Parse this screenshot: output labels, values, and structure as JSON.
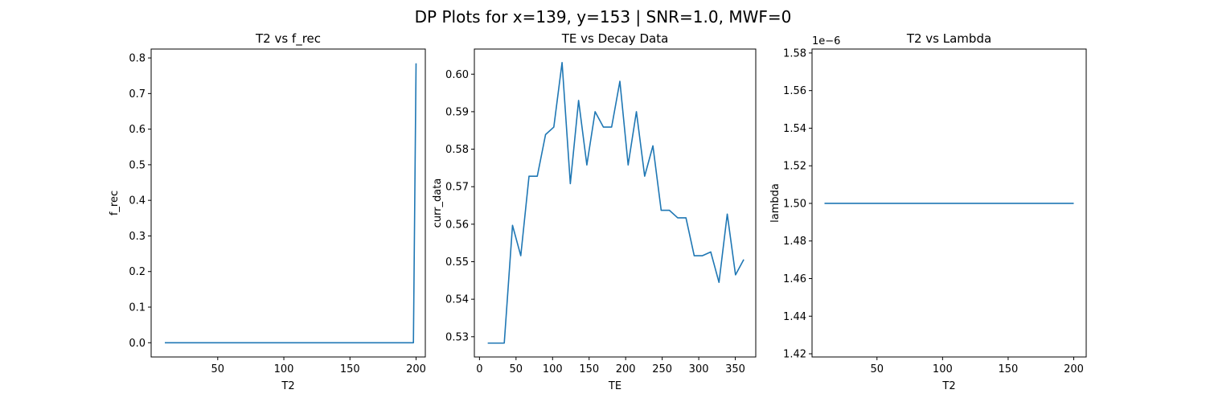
{
  "figure": {
    "suptitle": "DP Plots for x=139, y=153 | SNR=1.0, MWF=0"
  },
  "chart_data": [
    {
      "type": "line",
      "title": "T2 vs f_rec",
      "xlabel": "T2",
      "ylabel": "f_rec",
      "xlim": [
        -0.35,
        207
      ],
      "ylim": [
        -0.04,
        0.825
      ],
      "xticks": [
        50,
        100,
        150,
        200
      ],
      "xtick_labels": [
        "50",
        "100",
        "150",
        "200"
      ],
      "yticks": [
        0.0,
        0.1,
        0.2,
        0.3,
        0.4,
        0.5,
        0.6,
        0.7,
        0.8
      ],
      "ytick_labels": [
        "0.0",
        "0.1",
        "0.2",
        "0.3",
        "0.4",
        "0.5",
        "0.6",
        "0.7",
        "0.8"
      ],
      "offset_text": "",
      "color": "#1f77b4",
      "series": [
        {
          "x": [
            10,
            198,
            200
          ],
          "y": [
            0.0,
            0.0,
            0.785
          ]
        }
      ]
    },
    {
      "type": "line",
      "title": "TE vs Decay Data",
      "xlabel": "TE",
      "ylabel": "curr_data",
      "xlim": [
        -7,
        378
      ],
      "ylim": [
        0.5246,
        0.6067
      ],
      "xticks": [
        0,
        50,
        100,
        150,
        200,
        250,
        300,
        350
      ],
      "xtick_labels": [
        "0",
        "50",
        "100",
        "150",
        "200",
        "250",
        "300",
        "350"
      ],
      "yticks": [
        0.53,
        0.54,
        0.55,
        0.56,
        0.57,
        0.58,
        0.59,
        0.6
      ],
      "ytick_labels": [
        "0.53",
        "0.54",
        "0.55",
        "0.56",
        "0.57",
        "0.58",
        "0.59",
        "0.60"
      ],
      "offset_text": "",
      "color": "#1f77b4",
      "series": [
        {
          "x": [
            11.3,
            22.6,
            33.9,
            45.2,
            56.5,
            67.8,
            79.1,
            90.4,
            101.7,
            113,
            124.3,
            135.6,
            146.9,
            158.2,
            169.5,
            180.8,
            192.1,
            203.4,
            214.7,
            226,
            237.3,
            248.6,
            259.9,
            271.2,
            282.5,
            293.8,
            305.1,
            316.4,
            327.7,
            339,
            350.3,
            361.6
          ],
          "y": [
            0.5283,
            0.5283,
            0.5283,
            0.5597,
            0.5516,
            0.5728,
            0.5728,
            0.5839,
            0.5859,
            0.6031,
            0.5708,
            0.593,
            0.5758,
            0.59,
            0.5859,
            0.5859,
            0.5981,
            0.5758,
            0.59,
            0.5728,
            0.5809,
            0.5637,
            0.5637,
            0.5617,
            0.5617,
            0.5516,
            0.5516,
            0.5526,
            0.5445,
            0.5627,
            0.5465,
            0.5506
          ]
        }
      ]
    },
    {
      "type": "line",
      "title": "T2 vs Lambda",
      "xlabel": "T2",
      "ylabel": "lambda",
      "xlim": [
        0.5,
        209.5
      ],
      "ylim": [
        1.4183,
        1.5821
      ],
      "xticks": [
        50,
        100,
        150,
        200
      ],
      "xtick_labels": [
        "50",
        "100",
        "150",
        "200"
      ],
      "yticks": [
        1.42,
        1.44,
        1.46,
        1.48,
        1.5,
        1.52,
        1.54,
        1.56,
        1.58
      ],
      "ytick_labels": [
        "1.42",
        "1.44",
        "1.46",
        "1.48",
        "1.50",
        "1.52",
        "1.54",
        "1.56",
        "1.58"
      ],
      "offset_text": "1e−6",
      "color": "#1f77b4",
      "series": [
        {
          "x": [
            10,
            200
          ],
          "y": [
            1.5,
            1.5
          ]
        }
      ]
    }
  ]
}
